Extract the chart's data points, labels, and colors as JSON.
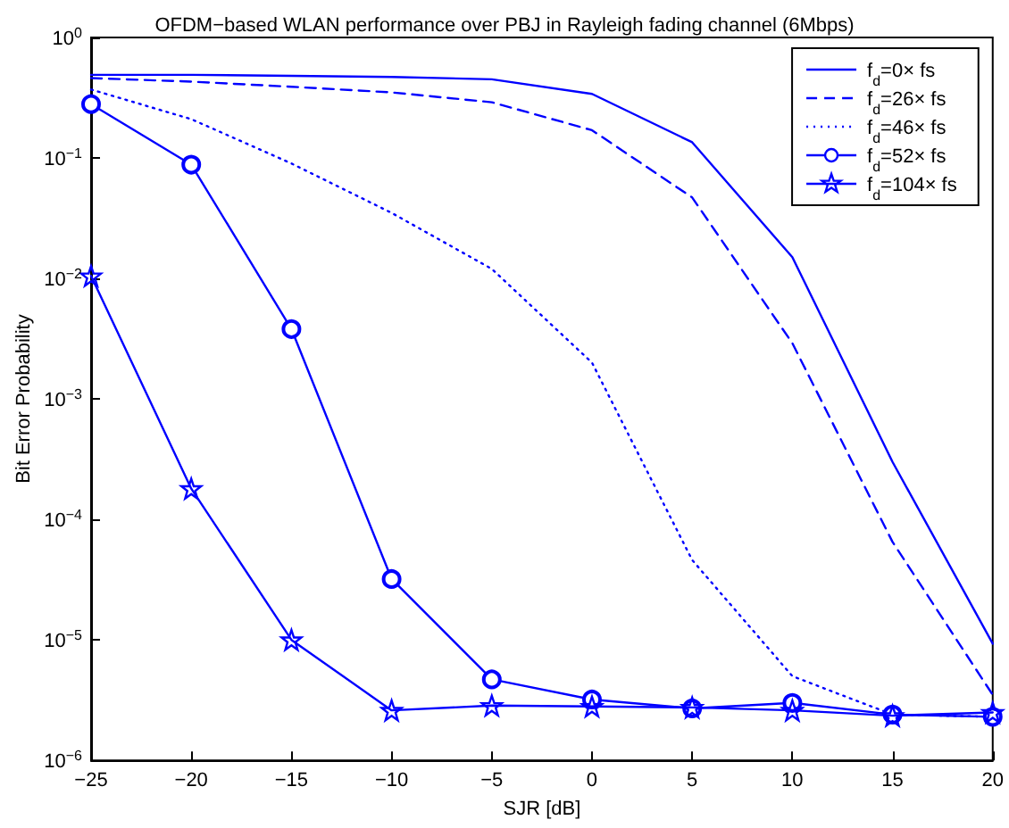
{
  "chart_data": {
    "type": "line",
    "title": "OFDM−based WLAN performance over PBJ in Rayleigh fading channel (6Mbps)",
    "xlabel": "SJR [dB]",
    "ylabel": "Bit Error Probability",
    "x": [
      -25,
      -20,
      -15,
      -10,
      -5,
      0,
      5,
      10,
      15,
      20
    ],
    "series": [
      {
        "name": "f$_{d}$=0× fs",
        "color": "#0000ff",
        "line_style": "solid",
        "marker": "none",
        "values": [
          0.49,
          0.49,
          0.48,
          0.47,
          0.45,
          0.34,
          0.135,
          0.015,
          0.0003,
          9.3e-06
        ]
      },
      {
        "name": "f$_{d}$=26× fs",
        "color": "#0000ff",
        "line_style": "dashed",
        "marker": "none",
        "values": [
          0.46,
          0.43,
          0.39,
          0.35,
          0.29,
          0.17,
          0.047,
          0.0029,
          6.5e-05,
          3.5e-06
        ]
      },
      {
        "name": "f$_{d}$=46× fs",
        "color": "#0000ff",
        "line_style": "dotted",
        "marker": "none",
        "values": [
          0.37,
          0.21,
          0.09,
          0.035,
          0.012,
          0.002,
          4.6e-05,
          5e-06,
          2.4e-06,
          2.3e-06
        ]
      },
      {
        "name": "f$_{d}$=52× fs",
        "color": "#0000ff",
        "line_style": "solid",
        "marker": "circle",
        "values": [
          0.28,
          0.088,
          0.0038,
          3.2e-05,
          4.7e-06,
          3.2e-06,
          2.7e-06,
          3e-06,
          2.4e-06,
          2.3e-06
        ]
      },
      {
        "name": "f$_{d}$=104× fs",
        "color": "#0000ff",
        "line_style": "solid",
        "marker": "star",
        "values": [
          0.0105,
          0.00018,
          1e-05,
          2.6e-06,
          2.85e-06,
          2.8e-06,
          2.75e-06,
          2.6e-06,
          2.35e-06,
          2.5e-06
        ]
      }
    ],
    "xlim": [
      -25,
      20
    ],
    "xticks": [
      -25,
      -20,
      -15,
      -10,
      -5,
      0,
      5,
      10,
      15,
      20
    ],
    "log": "y",
    "ylim": [
      1e-06,
      1
    ],
    "yticks": [
      {
        "value": 1e-06,
        "label": "10$^{−6}$"
      },
      {
        "value": 1e-05,
        "label": "10$^{−5}$"
      },
      {
        "value": 0.0001,
        "label": "10$^{−4}$"
      },
      {
        "value": 0.001,
        "label": "10$^{−3}$"
      },
      {
        "value": 0.01,
        "label": "10$^{−2}$"
      },
      {
        "value": 0.1,
        "label": "10$^{−1}$"
      },
      {
        "value": 1,
        "label": "10$^{0}$"
      }
    ],
    "grid": false,
    "legend": "top right"
  }
}
